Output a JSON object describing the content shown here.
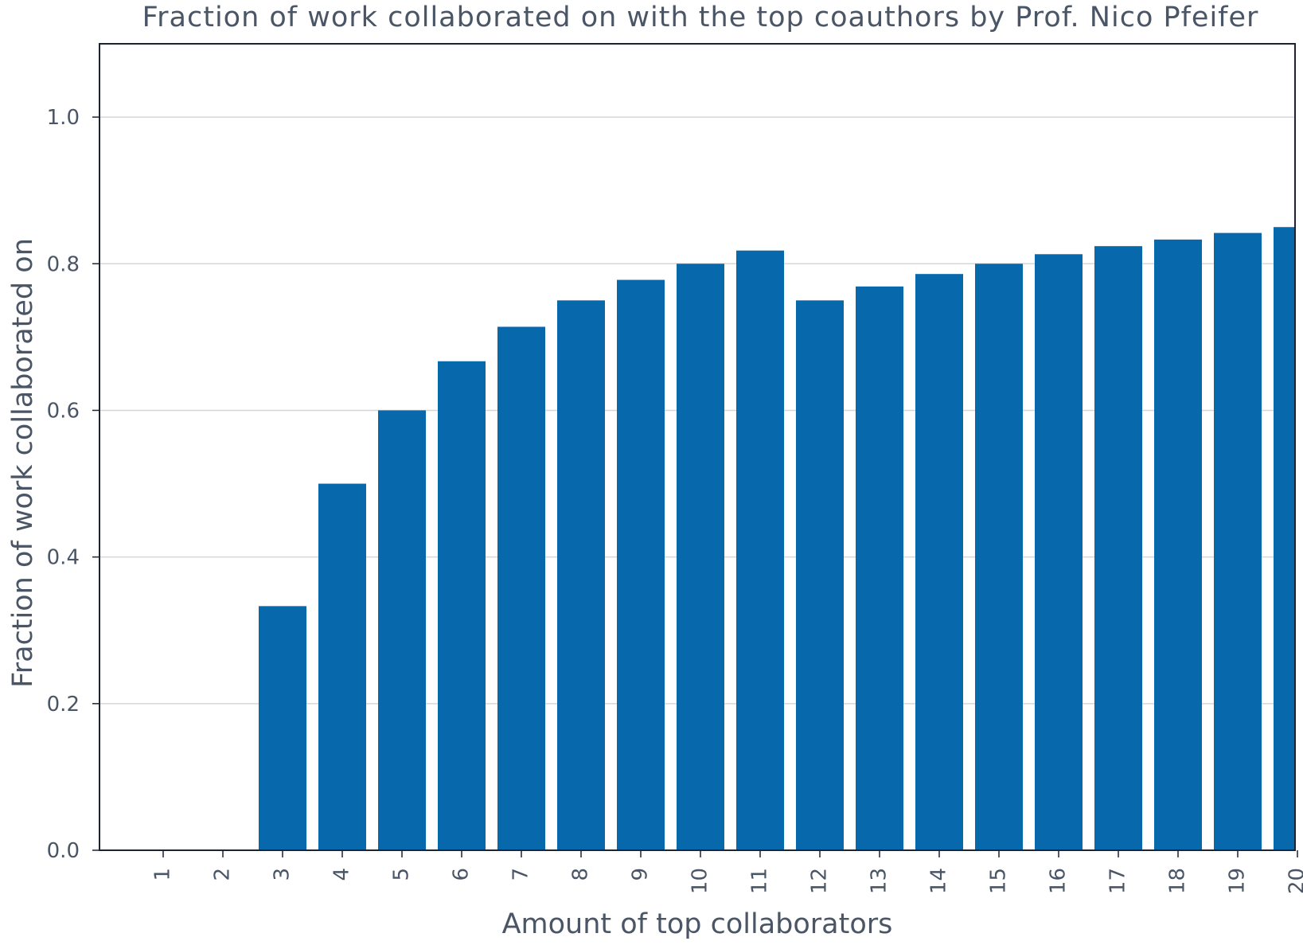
{
  "chart_data": {
    "type": "bar",
    "title": "Fraction of work collaborated on with the top coauthors by Prof. Nico Pfeifer",
    "xlabel": "Amount of top collaborators",
    "ylabel": "Fraction of work collaborated on",
    "categories": [
      "1",
      "2",
      "3",
      "4",
      "5",
      "6",
      "7",
      "8",
      "9",
      "10",
      "11",
      "12",
      "13",
      "14",
      "15",
      "16",
      "17",
      "18",
      "19",
      "20"
    ],
    "values": [
      0.0,
      0.0,
      0.333,
      0.5,
      0.6,
      0.667,
      0.714,
      0.75,
      0.778,
      0.8,
      0.818,
      0.75,
      0.769,
      0.786,
      0.8,
      0.813,
      0.824,
      0.833,
      0.842,
      0.85
    ],
    "ylim": [
      0,
      1.1
    ],
    "yticks": [
      "0.0",
      "0.2",
      "0.4",
      "0.6",
      "0.8",
      "1.0"
    ],
    "grid": true,
    "bar_color": "#0868AC",
    "grid_color": "#d6d6d6",
    "text_color": "#4a5566",
    "axis_color": "#1c2333"
  }
}
